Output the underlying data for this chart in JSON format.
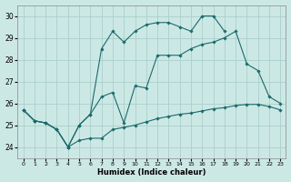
{
  "xlabel": "Humidex (Indice chaleur)",
  "background_color": "#cce8e5",
  "grid_color": "#aacfcc",
  "line_color": "#1a6b6b",
  "xlim": [
    -0.5,
    23.5
  ],
  "ylim": [
    23.5,
    30.5
  ],
  "yticks": [
    24,
    25,
    26,
    27,
    28,
    29,
    30
  ],
  "xticks": [
    0,
    1,
    2,
    3,
    4,
    5,
    6,
    7,
    8,
    9,
    10,
    11,
    12,
    13,
    14,
    15,
    16,
    17,
    18,
    19,
    20,
    21,
    22,
    23
  ],
  "series": [
    {
      "x": [
        0,
        1,
        2,
        3,
        4,
        5,
        6,
        7,
        8,
        9,
        10,
        11,
        12,
        13,
        14,
        15,
        16,
        17,
        18,
        19,
        20,
        21,
        22,
        23
      ],
      "y": [
        25.7,
        25.2,
        25.1,
        24.8,
        24.0,
        24.3,
        24.4,
        24.4,
        24.8,
        24.9,
        25.0,
        25.15,
        25.3,
        25.4,
        25.5,
        25.55,
        25.65,
        25.75,
        25.8,
        25.9,
        25.95,
        25.95,
        25.85,
        25.7
      ]
    },
    {
      "x": [
        0,
        1,
        2,
        3,
        4,
        5,
        6,
        7,
        8,
        9,
        10,
        11,
        12,
        13,
        14,
        15,
        16,
        17,
        18,
        19,
        20,
        21,
        22,
        23
      ],
      "y": [
        25.7,
        25.2,
        25.1,
        24.8,
        24.0,
        25.0,
        25.5,
        26.3,
        26.5,
        25.1,
        26.8,
        26.7,
        28.2,
        28.2,
        28.2,
        28.5,
        28.7,
        28.8,
        29.0,
        29.3,
        27.8,
        27.5,
        26.3,
        26.0
      ]
    },
    {
      "x": [
        0,
        1,
        2,
        3,
        4,
        5,
        6,
        7,
        8,
        9,
        10,
        11,
        12,
        13,
        14,
        15,
        16,
        17,
        18
      ],
      "y": [
        25.7,
        25.2,
        25.1,
        24.8,
        24.0,
        25.0,
        25.5,
        28.5,
        29.3,
        28.8,
        29.3,
        29.6,
        29.7,
        29.7,
        29.5,
        29.3,
        30.0,
        30.0,
        29.3
      ]
    }
  ]
}
